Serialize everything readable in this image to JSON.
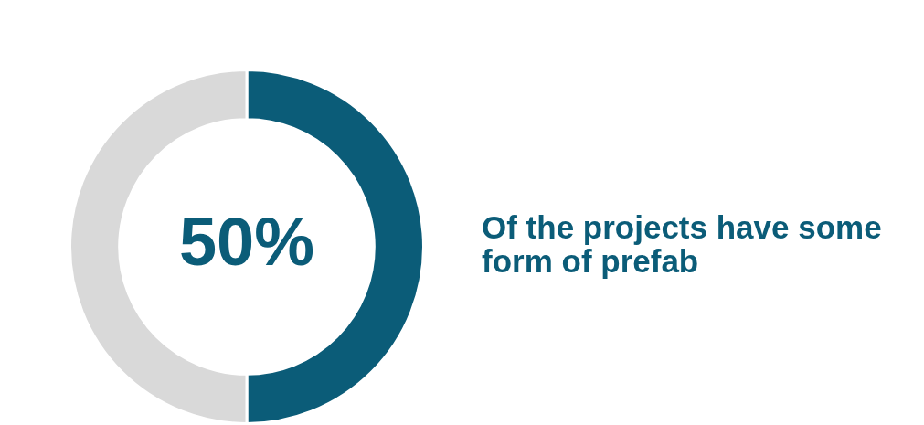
{
  "chart_data": {
    "type": "donut",
    "categories": [
      null,
      null
    ],
    "values": [
      50,
      50
    ],
    "colors": [
      "#0b5c78",
      "#d9d9d9"
    ],
    "value_labels": [
      "50%",
      null
    ],
    "annotations": [
      "Of the projects have some form of prefab"
    ]
  }
}
